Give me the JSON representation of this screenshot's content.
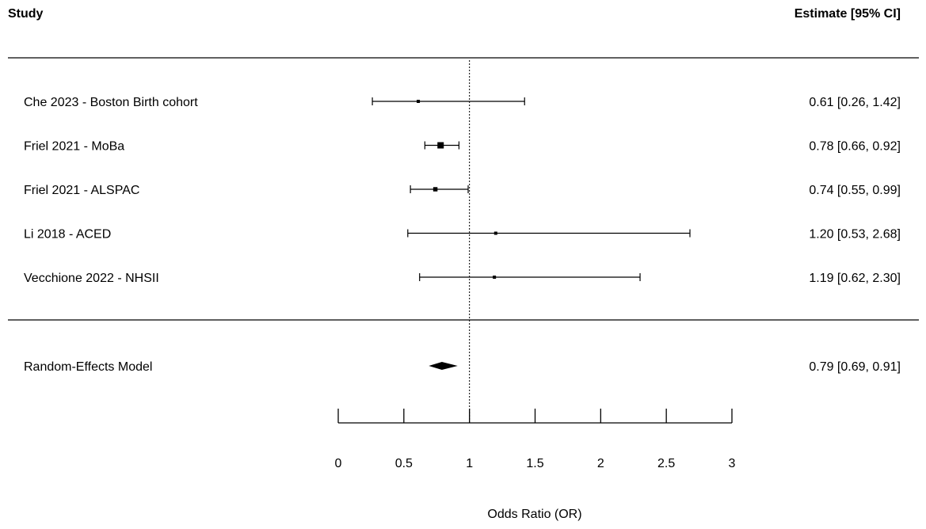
{
  "chart_data": {
    "type": "forest",
    "column_headers": {
      "study": "Study",
      "estimate": "Estimate [95% CI]"
    },
    "studies": [
      {
        "label": "Che 2023 - Boston Birth cohort",
        "estimate": 0.61,
        "ci_lower": 0.26,
        "ci_upper": 1.42,
        "estimate_text": "0.61 [0.26, 1.42]"
      },
      {
        "label": "Friel 2021 - MoBa",
        "estimate": 0.78,
        "ci_lower": 0.66,
        "ci_upper": 0.92,
        "estimate_text": "0.78 [0.66, 0.92]"
      },
      {
        "label": "Friel 2021 - ALSPAC",
        "estimate": 0.74,
        "ci_lower": 0.55,
        "ci_upper": 0.99,
        "estimate_text": "0.74 [0.55, 0.99]"
      },
      {
        "label": "Li 2018 - ACED",
        "estimate": 1.2,
        "ci_lower": 0.53,
        "ci_upper": 2.68,
        "estimate_text": "1.20 [0.53, 2.68]"
      },
      {
        "label": "Vecchione 2022 - NHSII",
        "estimate": 1.19,
        "ci_lower": 0.62,
        "ci_upper": 2.3,
        "estimate_text": "1.19 [0.62, 2.30]"
      }
    ],
    "summary": {
      "label": "Random-Effects Model",
      "estimate": 0.79,
      "ci_lower": 0.69,
      "ci_upper": 0.91,
      "estimate_text": "0.79 [0.69, 0.91]"
    },
    "reference_line": 1,
    "xaxis": {
      "label": "Odds Ratio (OR)",
      "range": [
        0,
        3
      ],
      "ticks": [
        0,
        0.5,
        1,
        1.5,
        2,
        2.5,
        3
      ],
      "tick_labels": [
        "0",
        "0.5",
        "1",
        "1.5",
        "2",
        "2.5",
        "3"
      ]
    },
    "grid": false
  }
}
